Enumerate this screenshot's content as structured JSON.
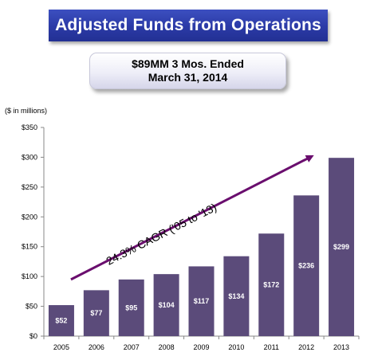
{
  "header": {
    "title": "Adjusted Funds from Operations"
  },
  "callout": {
    "line1": "$89MM 3 Mos. Ended",
    "line2": "March 31, 2014"
  },
  "chart_data": {
    "type": "bar",
    "title": "Adjusted Funds from Operations",
    "unit_label": "($ in millions)",
    "categories": [
      "2005",
      "2006",
      "2007",
      "2008",
      "2009",
      "2010",
      "2011",
      "2012",
      "2013"
    ],
    "values": [
      52,
      77,
      95,
      104,
      117,
      134,
      172,
      236,
      299
    ],
    "data_labels": [
      "$52",
      "$77",
      "$95",
      "$104",
      "$117",
      "$134",
      "$172",
      "$236",
      "$299"
    ],
    "ylim": [
      0,
      350
    ],
    "yticks": [
      0,
      50,
      100,
      150,
      200,
      250,
      300,
      350
    ],
    "ytick_labels": [
      "$0",
      "$50",
      "$100",
      "$150",
      "$200",
      "$250",
      "$300",
      "$350"
    ],
    "grid": false,
    "annotation": {
      "text": "24.3% CAGR ('05 to '13)",
      "arrow_from": {
        "x": "2005",
        "y": 95
      },
      "arrow_to": {
        "x": "2012",
        "y": 305
      }
    },
    "colors": {
      "bar": "#5b4b7a",
      "arrow": "#6a0e6e",
      "axis": "#888888"
    }
  }
}
